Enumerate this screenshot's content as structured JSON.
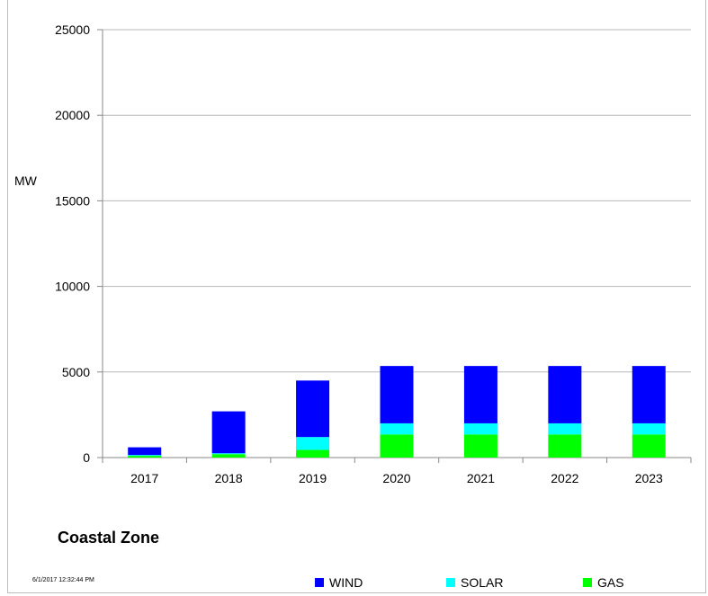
{
  "chart_data": {
    "type": "bar",
    "stacked": true,
    "title": "Coastal Zone",
    "ylabel": "MW",
    "xlabel": "",
    "categories": [
      "2017",
      "2018",
      "2019",
      "2020",
      "2021",
      "2022",
      "2023"
    ],
    "series": [
      {
        "name": "GAS",
        "color": "#00ff00",
        "values": [
          100,
          200,
          450,
          1350,
          1350,
          1350,
          1350
        ]
      },
      {
        "name": "SOLAR",
        "color": "#00ffff",
        "values": [
          50,
          50,
          750,
          650,
          650,
          650,
          650
        ]
      },
      {
        "name": "WIND",
        "color": "#0000ff",
        "values": [
          450,
          2450,
          3300,
          3350,
          3350,
          3350,
          3350
        ]
      }
    ],
    "ylim": [
      0,
      25000
    ],
    "yticks": [
      "0",
      "5000",
      "10000",
      "15000",
      "20000",
      "25000"
    ],
    "grid": true,
    "legend_position": "bottom"
  },
  "timestamp": "6/1/2017 12:32:44 PM",
  "legend": [
    {
      "label": "WIND",
      "color": "#0000ff"
    },
    {
      "label": "SOLAR",
      "color": "#00ffff"
    },
    {
      "label": "GAS",
      "color": "#00ff00"
    }
  ]
}
